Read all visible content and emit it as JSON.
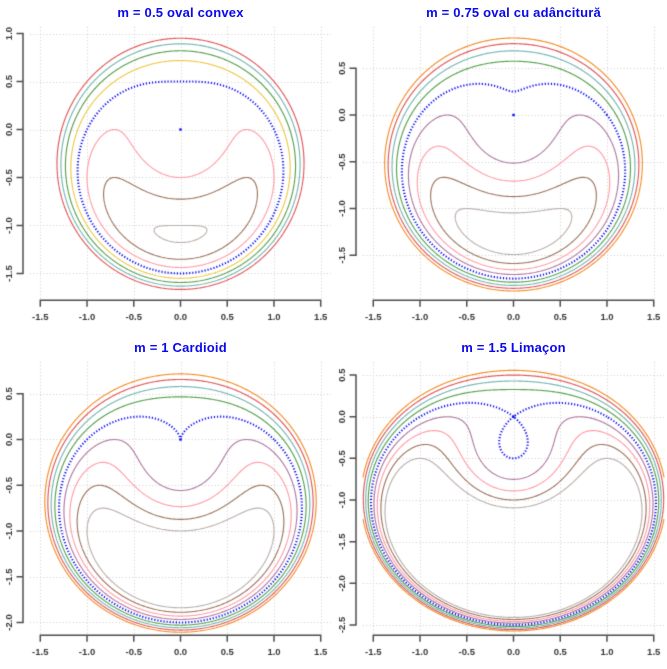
{
  "chart_data": {
    "type": "contour",
    "description": "2x2 grid of level-curve plots of the limacon family F(x,y) = (x^2 + y^2 + m*y)^2 - (x^2 + y^2) = c; bold dotted blue curve is the limacon itself (c = 0, polar r = 1 - m*sin(theta)) with a blue point marker at the pole (0,0).",
    "title_color": "#0909EC",
    "main_curve_color": "#0D0DF2",
    "grid": {
      "show": true,
      "style": "dotted",
      "color": "#CFCFCF"
    },
    "axis": {
      "line_color": "#4D4D4D",
      "label_color": "#383838"
    },
    "palette": {
      "orange": "#F28E2B",
      "red": "#E15759",
      "teal": "#76B7B2",
      "green": "#59A14F",
      "yellow": "#EDC948",
      "purple": "#B07AA1",
      "pink": "#FF9DA7",
      "brown": "#9C755F",
      "gray": "#BAB0AC",
      "blue": "#0D0DF2"
    },
    "panels": [
      {
        "title": "m = 0.5 oval convex",
        "m": 0.5,
        "xlim": [
          -1.61,
          1.61
        ],
        "ylim": [
          -1.766,
          1.068
        ],
        "xtick_labels": [
          "-1.5",
          "-1.0",
          "-0.5",
          "0.0",
          "0.5",
          "1.0",
          "1.5"
        ],
        "xtick_values": [
          -1.5,
          -1.0,
          -0.5,
          0.0,
          0.5,
          1.0,
          1.5
        ],
        "ytick_labels": [
          "1.0",
          "0.5",
          "0.0",
          "-0.5",
          "-1.0",
          "-1.5"
        ],
        "ytick_values": [
          1.0,
          0.5,
          0.0,
          -0.5,
          -1.0,
          -1.5
        ],
        "levels": [
          {
            "c": 1.0,
            "color": "#E15759"
          },
          {
            "c": 0.75,
            "color": "#76B7B2"
          },
          {
            "c": 0.5,
            "color": "#59A14F"
          },
          {
            "c": 0.25,
            "color": "#EDC948"
          },
          {
            "c": -0.25,
            "color": "#FF9DA7"
          },
          {
            "c": -0.5,
            "color": "#9C755F"
          },
          {
            "c": -0.75,
            "color": "#BAB0AC"
          }
        ],
        "main_curve": {
          "c": 0,
          "polar": "r = 1 - 0.5*sin(theta)",
          "color": "#0D0DF2",
          "style": "dotted-bold"
        },
        "origin_marker": {
          "x": 0,
          "y": 0,
          "color": "#0D0DF2"
        }
      },
      {
        "title": "m = 0.75 oval cu adâncitură",
        "m": 0.75,
        "xlim": [
          -1.61,
          1.61
        ],
        "ylim": [
          -1.968,
          0.941
        ],
        "xtick_labels": [
          "-1.5",
          "-1.0",
          "-0.5",
          "0.0",
          "0.5",
          "1.0",
          "1.5"
        ],
        "xtick_values": [
          -1.5,
          -1.0,
          -0.5,
          0.0,
          0.5,
          1.0,
          1.5
        ],
        "ytick_labels": [
          "0.5",
          "0.0",
          "-0.5",
          "-1.0",
          "-1.5"
        ],
        "ytick_values": [
          0.5,
          0.0,
          -0.5,
          -1.0,
          -1.5
        ],
        "levels": [
          {
            "c": 1.0,
            "color": "#F28E2B"
          },
          {
            "c": 0.75,
            "color": "#E15759"
          },
          {
            "c": 0.5,
            "color": "#76B7B2"
          },
          {
            "c": 0.25,
            "color": "#59A14F"
          },
          {
            "c": -0.25,
            "color": "#B07AA1"
          },
          {
            "c": -0.5,
            "color": "#FF9DA7"
          },
          {
            "c": -0.75,
            "color": "#9C755F"
          },
          {
            "c": -1.0,
            "color": "#BAB0AC"
          }
        ],
        "main_curve": {
          "c": 0,
          "polar": "r = 1 - 0.75*sin(theta)",
          "color": "#0D0DF2",
          "style": "dotted-bold"
        },
        "origin_marker": {
          "x": 0,
          "y": 0,
          "color": "#0D0DF2"
        }
      },
      {
        "title": "m = 1 Cardioid",
        "m": 1.0,
        "xlim": [
          -1.61,
          1.61
        ],
        "ylim": [
          -2.126,
          0.847
        ],
        "xtick_labels": [
          "-1.5",
          "-1.0",
          "-0.5",
          "0.0",
          "0.5",
          "1.0",
          "1.5"
        ],
        "xtick_values": [
          -1.5,
          -1.0,
          -0.5,
          0.0,
          0.5,
          1.0,
          1.5
        ],
        "ytick_labels": [
          "0.5",
          "0.0",
          "-0.5",
          "-1.0",
          "-1.5",
          "-2.0"
        ],
        "ytick_values": [
          0.5,
          0.0,
          -0.5,
          -1.0,
          -1.5,
          -2.0
        ],
        "levels": [
          {
            "c": 1.0,
            "color": "#F28E2B"
          },
          {
            "c": 0.75,
            "color": "#E15759"
          },
          {
            "c": 0.5,
            "color": "#76B7B2"
          },
          {
            "c": 0.25,
            "color": "#59A14F"
          },
          {
            "c": -0.25,
            "color": "#B07AA1"
          },
          {
            "c": -0.5,
            "color": "#FF9DA7"
          },
          {
            "c": -0.75,
            "color": "#9C755F"
          },
          {
            "c": -1.0,
            "color": "#BAB0AC"
          }
        ],
        "main_curve": {
          "c": 0,
          "polar": "r = 1 - 1*sin(theta)",
          "color": "#0D0DF2",
          "style": "dotted-bold"
        },
        "origin_marker": {
          "x": 0,
          "y": 0,
          "color": "#0D0DF2"
        }
      },
      {
        "title": "m = 1.5 Limaçon",
        "m": 1.5,
        "xlim": [
          -1.61,
          1.61
        ],
        "ylim": [
          -2.609,
          0.657
        ],
        "xtick_labels": [
          "-1.5",
          "-1.0",
          "-0.5",
          "0.0",
          "0.5",
          "1.0",
          "1.5"
        ],
        "xtick_values": [
          -1.5,
          -1.0,
          -0.5,
          0.0,
          0.5,
          1.0,
          1.5
        ],
        "ytick_labels": [
          "0.5",
          "0.0",
          "-0.5",
          "-1.0",
          "-1.5",
          "-2.0",
          "-2.5"
        ],
        "ytick_values": [
          0.5,
          0.0,
          -0.5,
          -1.0,
          -1.5,
          -2.0,
          -2.5
        ],
        "levels": [
          {
            "c": 1.0,
            "color": "#F28E2B"
          },
          {
            "c": 0.75,
            "color": "#E15759"
          },
          {
            "c": 0.5,
            "color": "#76B7B2"
          },
          {
            "c": 0.25,
            "color": "#59A14F"
          },
          {
            "c": -0.25,
            "color": "#B07AA1"
          },
          {
            "c": -0.5,
            "color": "#FF9DA7"
          },
          {
            "c": -0.75,
            "color": "#9C755F"
          },
          {
            "c": -1.0,
            "color": "#BAB0AC"
          }
        ],
        "main_curve": {
          "c": 0,
          "polar": "r = 1 - 1.5*sin(theta)",
          "color": "#0D0DF2",
          "style": "dotted-bold"
        },
        "origin_marker": {
          "x": 0,
          "y": 0,
          "color": "#0D0DF2"
        }
      }
    ]
  }
}
